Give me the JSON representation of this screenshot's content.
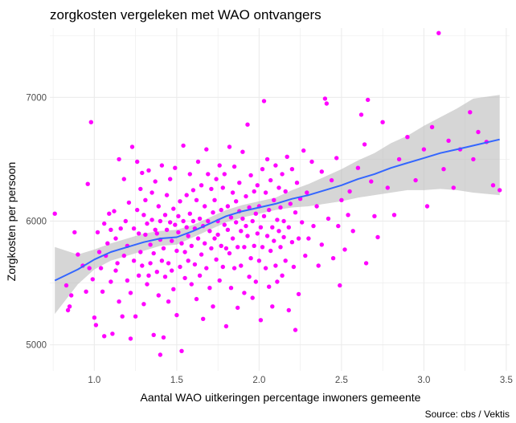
{
  "chart_data": {
    "type": "scatter",
    "title": "zorgkosten vergeleken met WAO ontvangers",
    "xlabel": "Aantal WAO uitkeringen percentage inwoners gemeente",
    "ylabel": "Zorgkosten per persoon",
    "caption": "Source: cbs / Vektis",
    "xlim": [
      0.73,
      3.52
    ],
    "ylim": [
      4790,
      7560
    ],
    "xticks": [
      1.0,
      1.5,
      2.0,
      2.5,
      3.0,
      3.5
    ],
    "xtick_labels": [
      "1.0",
      "1.5",
      "2.0",
      "2.5",
      "3.0",
      "3.5"
    ],
    "yticks": [
      5000,
      6000,
      7000
    ],
    "ytick_labels": [
      "5000",
      "6000",
      "7000"
    ],
    "grid": true,
    "colors": {
      "points": "#ff00ff",
      "smooth_line": "#3366ff",
      "confidence_band": "#bdbdbd",
      "grid": "#ebebeb"
    },
    "points": [
      [
        0.76,
        6060
      ],
      [
        0.83,
        5480
      ],
      [
        0.84,
        5280
      ],
      [
        0.85,
        5310
      ],
      [
        0.86,
        5400
      ],
      [
        0.88,
        5910
      ],
      [
        0.9,
        5730
      ],
      [
        0.93,
        5640
      ],
      [
        0.95,
        5430
      ],
      [
        0.96,
        6300
      ],
      [
        0.97,
        5620
      ],
      [
        0.98,
        6800
      ],
      [
        0.99,
        5530
      ],
      [
        1.0,
        5220
      ],
      [
        1.01,
        5160
      ],
      [
        1.02,
        5910
      ],
      [
        1.03,
        5750
      ],
      [
        1.04,
        5620
      ],
      [
        1.05,
        5430
      ],
      [
        1.06,
        5070
      ],
      [
        1.06,
        5980
      ],
      [
        1.07,
        5720
      ],
      [
        1.08,
        5820
      ],
      [
        1.09,
        6060
      ],
      [
        1.1,
        5930
      ],
      [
        1.1,
        5510
      ],
      [
        1.11,
        5090
      ],
      [
        1.12,
        6080
      ],
      [
        1.13,
        5860
      ],
      [
        1.13,
        5600
      ],
      [
        1.14,
        5660
      ],
      [
        1.15,
        6500
      ],
      [
        1.15,
        5350
      ],
      [
        1.16,
        5940
      ],
      [
        1.17,
        5230
      ],
      [
        1.18,
        5720
      ],
      [
        1.18,
        6340
      ],
      [
        1.19,
        6000
      ],
      [
        1.2,
        5520
      ],
      [
        1.2,
        5800
      ],
      [
        1.21,
        6150
      ],
      [
        1.22,
        5420
      ],
      [
        1.22,
        5050
      ],
      [
        1.23,
        6600
      ],
      [
        1.24,
        5680
      ],
      [
        1.24,
        5940
      ],
      [
        1.25,
        5230
      ],
      [
        1.26,
        6480
      ],
      [
        1.26,
        6090
      ],
      [
        1.27,
        5560
      ],
      [
        1.27,
        5900
      ],
      [
        1.28,
        6260
      ],
      [
        1.28,
        5750
      ],
      [
        1.29,
        6390
      ],
      [
        1.29,
        5640
      ],
      [
        1.3,
        6050
      ],
      [
        1.3,
        5330
      ],
      [
        1.31,
        5890
      ],
      [
        1.31,
        6170
      ],
      [
        1.32,
        5490
      ],
      [
        1.32,
        5980
      ],
      [
        1.33,
        5560
      ],
      [
        1.33,
        6410
      ],
      [
        1.34,
        5810
      ],
      [
        1.34,
        5660
      ],
      [
        1.35,
        6010
      ],
      [
        1.35,
        6230
      ],
      [
        1.36,
        5080
      ],
      [
        1.36,
        5740
      ],
      [
        1.37,
        5930
      ],
      [
        1.37,
        6320
      ],
      [
        1.38,
        5590
      ],
      [
        1.38,
        5900
      ],
      [
        1.39,
        6120
      ],
      [
        1.39,
        5400
      ],
      [
        1.4,
        4920
      ],
      [
        1.4,
        6000
      ],
      [
        1.4,
        5850
      ],
      [
        1.41,
        5680
      ],
      [
        1.41,
        6450
      ],
      [
        1.42,
        5060
      ],
      [
        1.42,
        5780
      ],
      [
        1.43,
        6050
      ],
      [
        1.43,
        5550
      ],
      [
        1.44,
        5930
      ],
      [
        1.44,
        6210
      ],
      [
        1.45,
        5660
      ],
      [
        1.45,
        5350
      ],
      [
        1.46,
        5990
      ],
      [
        1.46,
        6340
      ],
      [
        1.47,
        5840
      ],
      [
        1.47,
        5600
      ],
      [
        1.48,
        6100
      ],
      [
        1.48,
        5450
      ],
      [
        1.49,
        5970
      ],
      [
        1.49,
        6430
      ],
      [
        1.5,
        5760
      ],
      [
        1.5,
        5240
      ],
      [
        1.51,
        6040
      ],
      [
        1.51,
        5910
      ],
      [
        1.52,
        5630
      ],
      [
        1.52,
        6160
      ],
      [
        1.53,
        4950
      ],
      [
        1.53,
        5820
      ],
      [
        1.54,
        6000
      ],
      [
        1.54,
        6610
      ],
      [
        1.55,
        5540
      ],
      [
        1.55,
        5750
      ],
      [
        1.56,
        6210
      ],
      [
        1.56,
        5950
      ],
      [
        1.57,
        5880
      ],
      [
        1.57,
        5680
      ],
      [
        1.58,
        6060
      ],
      [
        1.58,
        6380
      ],
      [
        1.59,
        5490
      ],
      [
        1.59,
        5800
      ],
      [
        1.6,
        6000
      ],
      [
        1.6,
        6250
      ],
      [
        1.61,
        5940
      ],
      [
        1.61,
        5650
      ],
      [
        1.62,
        6170
      ],
      [
        1.62,
        5370
      ],
      [
        1.63,
        5860
      ],
      [
        1.63,
        6480
      ],
      [
        1.64,
        6020
      ],
      [
        1.64,
        5560
      ],
      [
        1.65,
        5730
      ],
      [
        1.65,
        6290
      ],
      [
        1.66,
        5960
      ],
      [
        1.66,
        5210
      ],
      [
        1.67,
        6120
      ],
      [
        1.67,
        5820
      ],
      [
        1.68,
        6580
      ],
      [
        1.68,
        5620
      ],
      [
        1.69,
        6000
      ],
      [
        1.69,
        6380
      ],
      [
        1.7,
        5920
      ],
      [
        1.7,
        5460
      ],
      [
        1.71,
        6260
      ],
      [
        1.71,
        5780
      ],
      [
        1.72,
        6070
      ],
      [
        1.72,
        5310
      ],
      [
        1.73,
        5860
      ],
      [
        1.73,
        6170
      ],
      [
        1.74,
        6340
      ],
      [
        1.74,
        5690
      ],
      [
        1.75,
        6000
      ],
      [
        1.75,
        5890
      ],
      [
        1.76,
        5520
      ],
      [
        1.76,
        6450
      ],
      [
        1.77,
        6090
      ],
      [
        1.77,
        5800
      ],
      [
        1.78,
        6270
      ],
      [
        1.78,
        5630
      ],
      [
        1.79,
        5970
      ],
      [
        1.79,
        6380
      ],
      [
        1.8,
        5150
      ],
      [
        1.8,
        5780
      ],
      [
        1.81,
        6120
      ],
      [
        1.81,
        5930
      ],
      [
        1.82,
        5740
      ],
      [
        1.82,
        6600
      ],
      [
        1.83,
        6030
      ],
      [
        1.83,
        5460
      ],
      [
        1.84,
        6230
      ],
      [
        1.84,
        5860
      ],
      [
        1.85,
        6440
      ],
      [
        1.85,
        5620
      ],
      [
        1.86,
        5990
      ],
      [
        1.86,
        6160
      ],
      [
        1.87,
        5790
      ],
      [
        1.87,
        5300
      ],
      [
        1.88,
        6310
      ],
      [
        1.88,
        6080
      ],
      [
        1.89,
        5640
      ],
      [
        1.89,
        5920
      ],
      [
        1.9,
        6560
      ],
      [
        1.9,
        6020
      ],
      [
        1.91,
        5790
      ],
      [
        1.91,
        5420
      ],
      [
        1.92,
        6200
      ],
      [
        1.92,
        5960
      ],
      [
        1.93,
        6780
      ],
      [
        1.93,
        5880
      ],
      [
        1.94,
        5550
      ],
      [
        1.94,
        6110
      ],
      [
        1.95,
        6370
      ],
      [
        1.95,
        5700
      ],
      [
        1.96,
        6000
      ],
      [
        1.96,
        5380
      ],
      [
        1.97,
        6240
      ],
      [
        1.97,
        5800
      ],
      [
        1.98,
        6060
      ],
      [
        1.98,
        5510
      ],
      [
        1.99,
        5900
      ],
      [
        1.99,
        6290
      ],
      [
        2.0,
        5680
      ],
      [
        2.0,
        6120
      ],
      [
        2.01,
        5200
      ],
      [
        2.01,
        5950
      ],
      [
        2.02,
        6420
      ],
      [
        2.02,
        5790
      ],
      [
        2.03,
        6970
      ],
      [
        2.03,
        6040
      ],
      [
        2.04,
        5620
      ],
      [
        2.04,
        6230
      ],
      [
        2.05,
        5880
      ],
      [
        2.05,
        6500
      ],
      [
        2.06,
        5470
      ],
      [
        2.06,
        6090
      ],
      [
        2.07,
        5760
      ],
      [
        2.07,
        6330
      ],
      [
        2.08,
        5950
      ],
      [
        2.08,
        5310
      ],
      [
        2.09,
        6170
      ],
      [
        2.09,
        5840
      ],
      [
        2.1,
        6450
      ],
      [
        2.1,
        5640
      ],
      [
        2.11,
        6010
      ],
      [
        2.11,
        5510
      ],
      [
        2.12,
        6270
      ],
      [
        2.12,
        5920
      ],
      [
        2.13,
        5790
      ],
      [
        2.13,
        6110
      ],
      [
        2.14,
        6380
      ],
      [
        2.14,
        5560
      ],
      [
        2.15,
        6000
      ],
      [
        2.15,
        5870
      ],
      [
        2.16,
        6240
      ],
      [
        2.16,
        5680
      ],
      [
        2.17,
        6520
      ],
      [
        2.18,
        5280
      ],
      [
        2.18,
        5950
      ],
      [
        2.19,
        6140
      ],
      [
        2.2,
        5830
      ],
      [
        2.2,
        6420
      ],
      [
        2.21,
        5630
      ],
      [
        2.22,
        6070
      ],
      [
        2.22,
        5120
      ],
      [
        2.23,
        6310
      ],
      [
        2.24,
        5860
      ],
      [
        2.24,
        5410
      ],
      [
        2.25,
        6180
      ],
      [
        2.26,
        5990
      ],
      [
        2.27,
        6570
      ],
      [
        2.28,
        5720
      ],
      [
        2.29,
        6230
      ],
      [
        2.3,
        5860
      ],
      [
        2.32,
        6480
      ],
      [
        2.33,
        5960
      ],
      [
        2.35,
        6120
      ],
      [
        2.36,
        5640
      ],
      [
        2.38,
        6400
      ],
      [
        2.38,
        5810
      ],
      [
        2.4,
        6990
      ],
      [
        2.41,
        6950
      ],
      [
        2.42,
        6020
      ],
      [
        2.44,
        6330
      ],
      [
        2.45,
        5700
      ],
      [
        2.47,
        6510
      ],
      [
        2.48,
        5960
      ],
      [
        2.49,
        5480
      ],
      [
        2.5,
        6170
      ],
      [
        2.52,
        5770
      ],
      [
        2.54,
        6050
      ],
      [
        2.55,
        6240
      ],
      [
        2.57,
        5920
      ],
      [
        2.6,
        6430
      ],
      [
        2.62,
        6860
      ],
      [
        2.64,
        6620
      ],
      [
        2.65,
        5660
      ],
      [
        2.66,
        6980
      ],
      [
        2.68,
        6320
      ],
      [
        2.7,
        6040
      ],
      [
        2.72,
        5870
      ],
      [
        2.75,
        6800
      ],
      [
        2.78,
        6270
      ],
      [
        2.82,
        6050
      ],
      [
        2.85,
        6500
      ],
      [
        2.9,
        6680
      ],
      [
        2.95,
        6330
      ],
      [
        3.0,
        6580
      ],
      [
        3.02,
        6120
      ],
      [
        3.05,
        6760
      ],
      [
        3.09,
        7520
      ],
      [
        3.12,
        6420
      ],
      [
        3.15,
        6650
      ],
      [
        3.18,
        6270
      ],
      [
        3.22,
        6580
      ],
      [
        3.28,
        6880
      ],
      [
        3.3,
        6500
      ],
      [
        3.33,
        6720
      ],
      [
        3.38,
        6640
      ],
      [
        3.42,
        6290
      ],
      [
        3.46,
        6250
      ]
    ],
    "smooth": {
      "x": [
        0.76,
        0.9,
        1.0,
        1.1,
        1.2,
        1.3,
        1.4,
        1.5,
        1.6,
        1.7,
        1.8,
        1.9,
        2.0,
        2.1,
        2.2,
        2.3,
        2.4,
        2.5,
        2.6,
        2.7,
        2.8,
        2.9,
        3.0,
        3.1,
        3.2,
        3.3,
        3.46
      ],
      "y": [
        5520,
        5610,
        5690,
        5750,
        5790,
        5830,
        5860,
        5870,
        5920,
        5980,
        6040,
        6080,
        6110,
        6140,
        6180,
        6210,
        6250,
        6290,
        6340,
        6380,
        6430,
        6470,
        6510,
        6550,
        6580,
        6610,
        6660
      ],
      "lower": [
        5250,
        5490,
        5610,
        5680,
        5720,
        5760,
        5800,
        5810,
        5870,
        5930,
        5990,
        6030,
        6060,
        6090,
        6110,
        6120,
        6140,
        6160,
        6190,
        6210,
        6230,
        6250,
        6250,
        6260,
        6250,
        6230,
        6210
      ],
      "upper": [
        5790,
        5730,
        5770,
        5820,
        5860,
        5900,
        5920,
        5930,
        5970,
        6030,
        6090,
        6130,
        6160,
        6190,
        6250,
        6300,
        6360,
        6420,
        6490,
        6550,
        6630,
        6690,
        6770,
        6840,
        6910,
        6990,
        7020
      ]
    }
  }
}
